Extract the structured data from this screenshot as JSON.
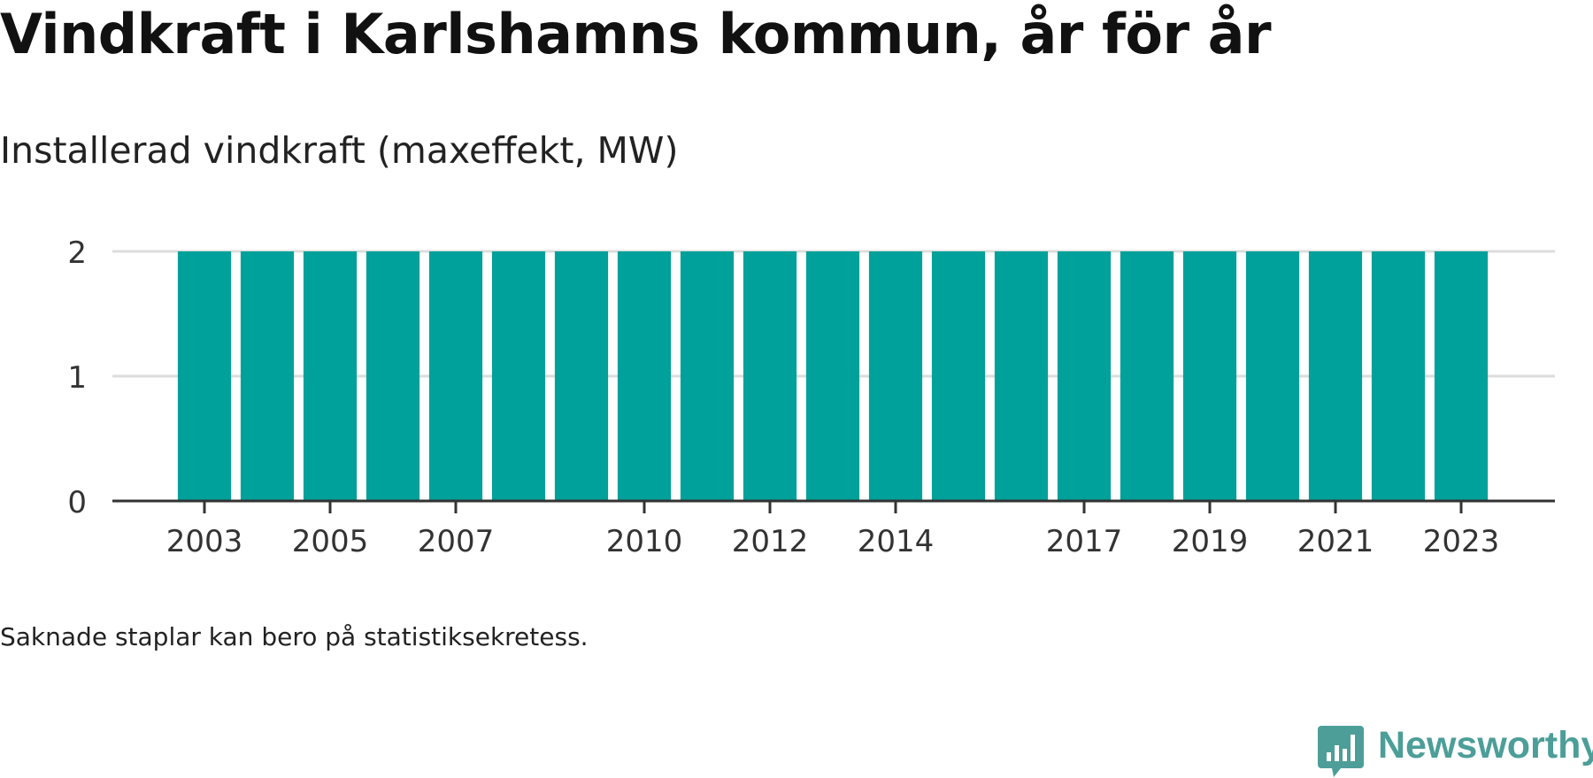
{
  "title": "Vindkraft i Karlshamns kommun, år för år",
  "subtitle": "Installerad vindkraft (maxeffekt, MW)",
  "footnote": "Saknade staplar kan bero på statistiksekretess.",
  "brand": {
    "name": "Newsworthy",
    "icon": "newsworthy-logo-icon",
    "color": "#4d9e98"
  },
  "chart_data": {
    "type": "bar",
    "categories": [
      "2003",
      "2004",
      "2005",
      "2006",
      "2007",
      "2008",
      "2009",
      "2010",
      "2011",
      "2012",
      "2013",
      "2014",
      "2015",
      "2016",
      "2017",
      "2018",
      "2019",
      "2020",
      "2021",
      "2022",
      "2023"
    ],
    "values": [
      2,
      2,
      2,
      2,
      2,
      2,
      2,
      2,
      2,
      2,
      2,
      2,
      2,
      2,
      2,
      2,
      2,
      2,
      2,
      2,
      2
    ],
    "x_tick_labels": [
      "2003",
      "2005",
      "2007",
      "2010",
      "2012",
      "2014",
      "2017",
      "2019",
      "2021",
      "2023"
    ],
    "y_ticks": [
      0,
      1,
      2
    ],
    "ylim": [
      0,
      2
    ],
    "grid": true,
    "bar_color": "#00a19a",
    "grid_color": "#dddddd",
    "axis_color": "#333333"
  }
}
